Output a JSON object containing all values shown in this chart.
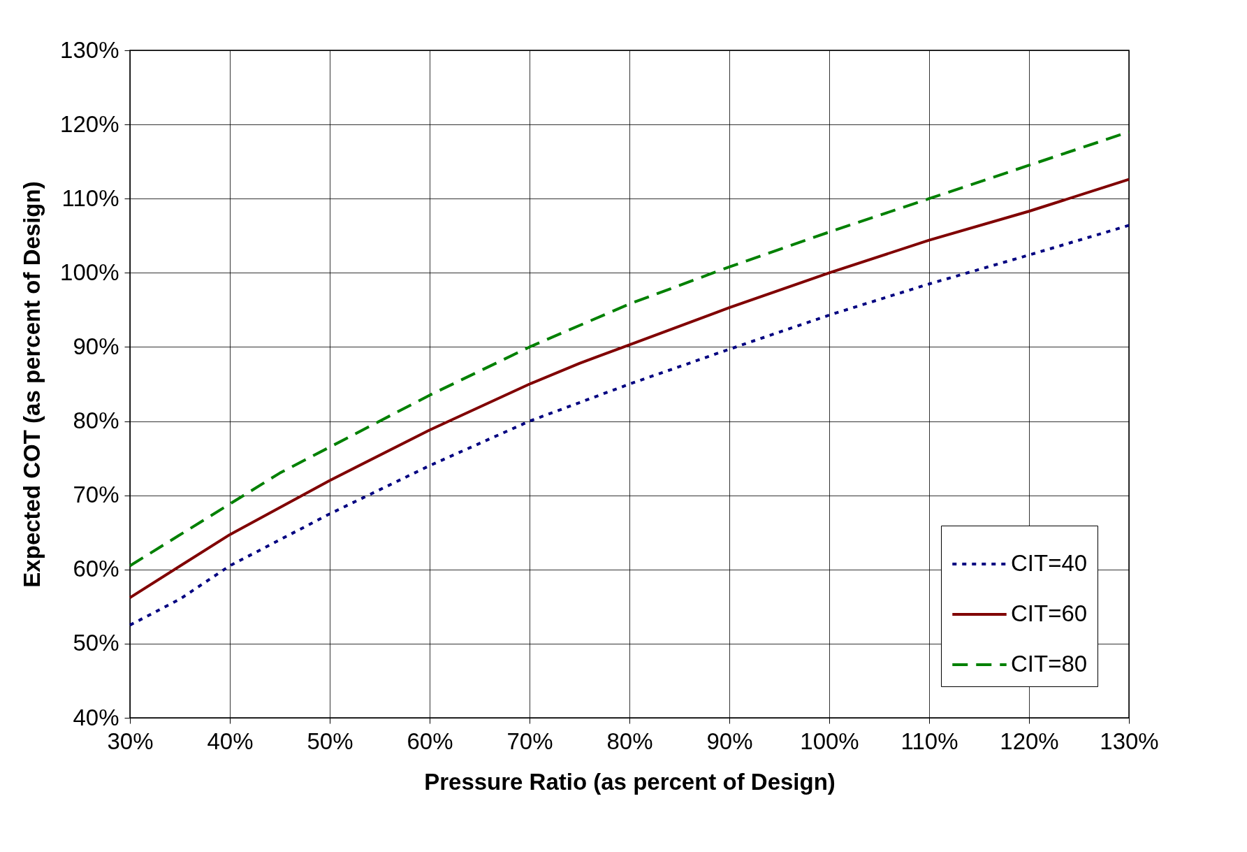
{
  "chart_data": {
    "type": "line",
    "xlabel": "Pressure Ratio (as percent of Design)",
    "ylabel": "Expected COT (as percent of Design)",
    "xlim": [
      30,
      130
    ],
    "xticks": [
      {
        "value": 30,
        "label": "30%"
      },
      {
        "value": 40,
        "label": "40%"
      },
      {
        "value": 50,
        "label": "50%"
      },
      {
        "value": 60,
        "label": "60%"
      },
      {
        "value": 70,
        "label": "70%"
      },
      {
        "value": 80,
        "label": "80%"
      },
      {
        "value": 90,
        "label": "90%"
      },
      {
        "value": 100,
        "label": "100%"
      },
      {
        "value": 110,
        "label": "110%"
      },
      {
        "value": 120,
        "label": "120%"
      },
      {
        "value": 130,
        "label": "130%"
      }
    ],
    "ylim": [
      40,
      130
    ],
    "yticks": [
      {
        "value": 40,
        "label": "40%"
      },
      {
        "value": 50,
        "label": "50%"
      },
      {
        "value": 60,
        "label": "60%"
      },
      {
        "value": 70,
        "label": "70%"
      },
      {
        "value": 80,
        "label": "80%"
      },
      {
        "value": 90,
        "label": "90%"
      },
      {
        "value": 100,
        "label": "100%"
      },
      {
        "value": 110,
        "label": "110%"
      },
      {
        "value": 120,
        "label": "120%"
      },
      {
        "value": 130,
        "label": "130%"
      }
    ],
    "grid": true,
    "legend": "bottom right",
    "series": [
      {
        "name": "CIT=40",
        "color": "#000080",
        "line_style": "dotted",
        "x": [
          30,
          35,
          40,
          45,
          50,
          60,
          70,
          80,
          90,
          100,
          110,
          120,
          130
        ],
        "values": [
          52.5,
          56,
          60.5,
          64,
          67.5,
          74,
          80,
          85,
          89.7,
          94.3,
          98.5,
          102.4,
          106.4
        ]
      },
      {
        "name": "CIT=60",
        "color": "#800000",
        "line_style": "solid",
        "x": [
          30,
          40,
          50,
          60,
          70,
          75,
          80,
          90,
          100,
          110,
          120,
          130
        ],
        "values": [
          56.2,
          64.7,
          72,
          78.8,
          85,
          87.8,
          90.3,
          95.3,
          100,
          104.4,
          108.3,
          112.6
        ]
      },
      {
        "name": "CIT=80",
        "color": "#008000",
        "line_style": "dashed",
        "x": [
          30,
          45,
          50,
          60,
          70,
          80,
          90,
          100,
          110,
          120,
          130
        ],
        "values": [
          60.5,
          73,
          76.5,
          83.5,
          90,
          95.8,
          100.8,
          105.5,
          110,
          114.5,
          119
        ]
      }
    ]
  }
}
